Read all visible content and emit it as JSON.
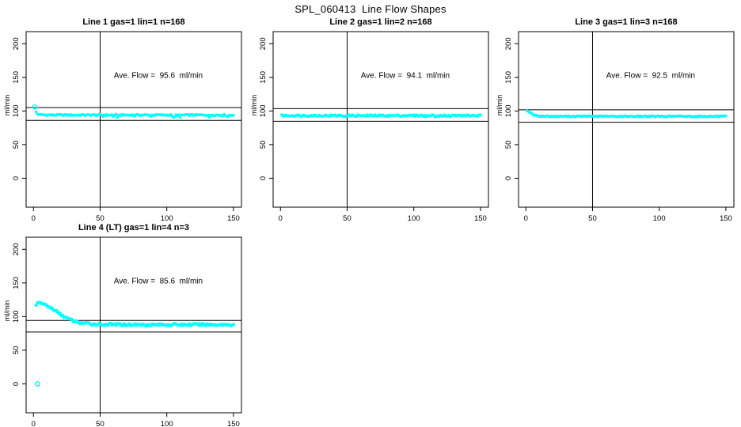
{
  "page": {
    "title": "SPL_060413  Line Flow Shapes"
  },
  "axis": {
    "ylabel": "ml/min",
    "xlabel": "",
    "x_ticks": [
      0,
      50,
      100,
      150
    ],
    "y_ticks": [
      0,
      50,
      100,
      150,
      200
    ],
    "xlim": [
      -5.5,
      156
    ],
    "ylim": [
      -43,
      218
    ],
    "vline_x": 50,
    "grid": false,
    "legend": "none",
    "marker_color": "#00FFFF",
    "line_color": "#000000"
  },
  "chart_data": [
    {
      "type": "scatter",
      "title": "Line 1 gas=1 lin=1 n=168",
      "n": 168,
      "ave_flow": 95.6,
      "ave_flow_label": "Ave. Flow =  95.6  ml/min",
      "ref_lines": [
        105.2,
        86.0
      ],
      "profile": [
        [
          2,
          98.5
        ],
        [
          3,
          95.5
        ],
        [
          5,
          94.5
        ],
        [
          8,
          94.2
        ],
        [
          15,
          94
        ],
        [
          30,
          94
        ],
        [
          60,
          94
        ],
        [
          90,
          94
        ],
        [
          120,
          94
        ],
        [
          150,
          94
        ]
      ],
      "open_points": [
        [
          1,
          106
        ]
      ],
      "jitter": 1.0,
      "noise_p": 0.1,
      "noise_d": 2.4,
      "r": 1.8
    },
    {
      "type": "scatter",
      "title": "Line 2 gas=1 lin=2 n=168",
      "n": 168,
      "ave_flow": 94.1,
      "ave_flow_label": "Ave. Flow =  94.1  ml/min",
      "ref_lines": [
        103.5,
        84.7
      ],
      "profile": [
        [
          1,
          93.2
        ],
        [
          5,
          93.2
        ],
        [
          150,
          93.2
        ]
      ],
      "open_points": [],
      "jitter": 1.2,
      "noise_p": 0.06,
      "noise_d": 1.6,
      "r": 1.9
    },
    {
      "type": "scatter",
      "title": "Line 3 gas=1 lin=3 n=168",
      "n": 168,
      "ave_flow": 92.5,
      "ave_flow_label": "Ave. Flow =  92.5  ml/min",
      "ref_lines": [
        101.8,
        83.3
      ],
      "profile": [
        [
          1,
          100
        ],
        [
          2,
          99.5
        ],
        [
          3,
          98
        ],
        [
          4,
          96.5
        ],
        [
          5,
          95
        ],
        [
          6,
          94
        ],
        [
          8,
          93
        ],
        [
          10,
          92.5
        ],
        [
          14,
          92.2
        ],
        [
          20,
          92
        ],
        [
          150,
          92
        ]
      ],
      "open_points": [],
      "jitter": 0.9,
      "noise_p": 0,
      "noise_d": 0,
      "r": 1.8
    },
    {
      "type": "scatter",
      "title": "Line 4 (LT) gas=1 lin=4 n=3",
      "n": 3,
      "ave_flow": 85.6,
      "ave_flow_label": "Ave. Flow =  85.6  ml/min",
      "ref_lines": [
        94.2,
        77.0
      ],
      "profile": [
        [
          2,
          118
        ],
        [
          4,
          120
        ],
        [
          6,
          120
        ],
        [
          9,
          117.5
        ],
        [
          12,
          114
        ],
        [
          15,
          110.5
        ],
        [
          18,
          106.5
        ],
        [
          21,
          102.5
        ],
        [
          24,
          99
        ],
        [
          27,
          96
        ],
        [
          30,
          93.5
        ],
        [
          33,
          91.8
        ],
        [
          36,
          90.5
        ],
        [
          40,
          89.5
        ],
        [
          45,
          88.8
        ],
        [
          50,
          88.5
        ],
        [
          60,
          88.2
        ],
        [
          80,
          88
        ],
        [
          150,
          88
        ]
      ],
      "open_points": [
        [
          3,
          0
        ]
      ],
      "jitter": 1.6,
      "noise_p": 0,
      "noise_d": 0,
      "r": 2.1
    }
  ]
}
